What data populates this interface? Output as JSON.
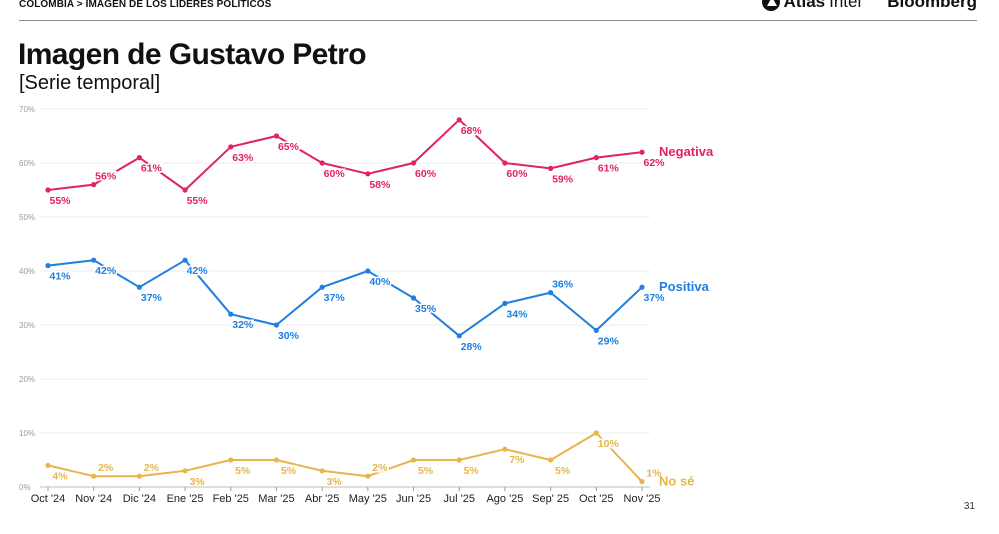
{
  "header": {
    "breadcrumb": "COLOMBIA > IMAGEN DE LOS LÍDERES POLÍTICOS",
    "brand_atlas_bold": "Atlas",
    "brand_atlas_light": "Intel",
    "brand_bloomberg": "Bloomberg"
  },
  "title": "Imagen de Gustavo Petro",
  "subtitle": "[Serie temporal]",
  "page_number": "31",
  "chart_data": {
    "type": "line",
    "categories": [
      "Oct '24",
      "Nov '24",
      "Dic '24",
      "Ene '25",
      "Feb '25",
      "Mar '25",
      "Abr '25",
      "May '25",
      "Jun '25",
      "Jul '25",
      "Ago '25",
      "Sep' 25",
      "Oct '25",
      "Nov '25"
    ],
    "ylim": [
      0,
      70
    ],
    "yticks": [
      0,
      10,
      20,
      30,
      40,
      50,
      60,
      70
    ],
    "ytick_labels": [
      "0%",
      "10%",
      "20%",
      "30%",
      "40%",
      "50%",
      "60%",
      "70%"
    ],
    "grid": true,
    "value_suffix": "%",
    "series": [
      {
        "name": "Negativa",
        "color": "#e0245e",
        "values": [
          55,
          56,
          61,
          55,
          63,
          65,
          60,
          58,
          60,
          68,
          60,
          59,
          61,
          62
        ],
        "label_pos": [
          "below",
          "above",
          "below",
          "below",
          "below",
          "below",
          "below",
          "below",
          "below",
          "below",
          "below",
          "below",
          "below",
          "below"
        ]
      },
      {
        "name": "Positiva",
        "color": "#1f7fe0",
        "values": [
          41,
          42,
          37,
          42,
          32,
          30,
          37,
          40,
          35,
          28,
          34,
          36,
          29,
          37
        ],
        "label_pos": [
          "below",
          "below",
          "below",
          "below",
          "below",
          "below",
          "below",
          "below",
          "below",
          "below",
          "below",
          "above",
          "below",
          "below"
        ]
      },
      {
        "name": "No sé",
        "color": "#e6b64c",
        "values": [
          4,
          2,
          2,
          3,
          5,
          5,
          3,
          2,
          5,
          5,
          7,
          5,
          10,
          1
        ],
        "label_pos": [
          "below",
          "above",
          "above",
          "below",
          "below",
          "below",
          "below",
          "above",
          "below",
          "below",
          "below",
          "below",
          "below",
          "above"
        ]
      }
    ]
  }
}
